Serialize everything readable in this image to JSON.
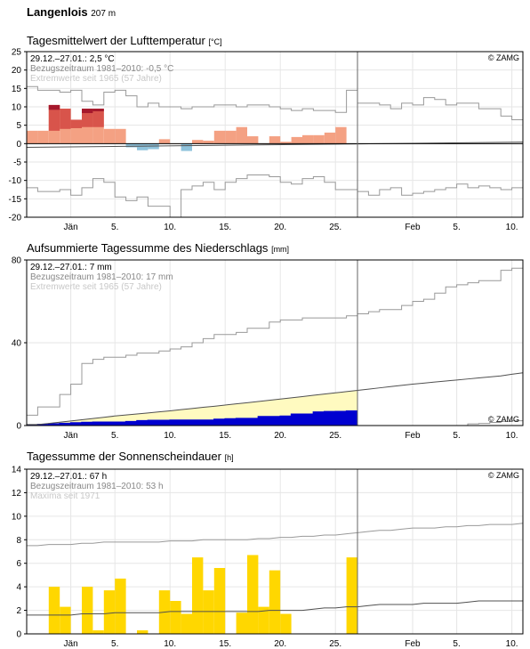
{
  "station": {
    "name": "Langenlois",
    "elevation": "207 m"
  },
  "chart_data": [
    {
      "type": "bar",
      "title": "Tagesmittelwert der Lufttemperatur",
      "unit": "[°C]",
      "info": {
        "line1": "29.12.–27.01.: 2,5 °C",
        "line2": "Bezugszeitraum 1981–2010: -0,5 °C",
        "line3": "Extremwerte seit 1965 (57 Jahre)",
        "copyright": "© ZAMG"
      },
      "ylim": [
        -20,
        25
      ],
      "yticks": [
        25,
        20,
        15,
        10,
        5,
        0,
        -5,
        -10,
        -15,
        -20
      ],
      "xticks": [
        {
          "label": "Jän",
          "day": 4
        },
        {
          "label": "5.",
          "day": 8
        },
        {
          "label": "10.",
          "day": 13
        },
        {
          "label": "15.",
          "day": 18
        },
        {
          "label": "20.",
          "day": 23
        },
        {
          "label": "25.",
          "day": 28
        },
        {
          "label": "Feb",
          "day": 35
        },
        {
          "label": "5.",
          "day": 39
        },
        {
          "label": "10.",
          "day": 44
        }
      ],
      "days": 45,
      "split_day": 30,
      "values": [
        3.5,
        3.5,
        10.5,
        9.5,
        6.5,
        9.5,
        9.5,
        4,
        4,
        -1,
        -1.8,
        -1.5,
        1.2,
        0,
        -2,
        1,
        0.8,
        3.5,
        3.5,
        4.5,
        2,
        0,
        2,
        0.5,
        1.8,
        2.3,
        2.3,
        3,
        4.5
      ],
      "clim_values": [
        3.5,
        3.5,
        3.5,
        4,
        4.2,
        4.5,
        4.5,
        4,
        4
      ],
      "colors": {
        "warm": "#f4a183",
        "warm_extra": "#d8544b",
        "warm_record": "#a5182c",
        "cold": "#8fc3dc",
        "normal": "#505050",
        "extreme": "#999999"
      },
      "normal_start": -1.0,
      "normal_end": 0.4,
      "max_extreme": [
        15.5,
        14.5,
        14.5,
        14,
        14.5,
        11.5,
        10.5,
        14,
        14.5,
        13,
        10,
        11,
        10,
        10,
        9.5,
        10,
        10,
        10.5,
        10.5,
        10,
        10.5,
        10.5,
        10,
        9.5,
        9,
        9.5,
        9,
        9,
        8.5,
        14.5,
        11,
        11,
        10.5,
        9.5,
        11,
        10.5,
        12.5,
        12,
        10.5,
        11,
        11,
        9.5,
        9.5,
        7.5,
        6.5
      ],
      "min_extreme": [
        -12,
        -13,
        -13,
        -12.5,
        -14,
        -12,
        -9.5,
        -10.5,
        -14.5,
        -15.5,
        -14.5,
        -17,
        -17,
        -20,
        -12.5,
        -11.5,
        -10.5,
        -12.5,
        -10.5,
        -9.5,
        -8.5,
        -8.5,
        -9,
        -10.5,
        -11,
        -9.5,
        -9,
        -10.5,
        -12.5,
        -12.5,
        -13,
        -14,
        -12.5,
        -12,
        -14,
        -13.5,
        -13,
        -12.5,
        -12,
        -11,
        -12,
        -11.5,
        -12,
        -12.5,
        -12
      ]
    },
    {
      "type": "area",
      "title": "Aufsummierte Tagessumme des Niederschlags",
      "unit": "[mm]",
      "info": {
        "line1": "29.12.–27.01.: 7 mm",
        "line2": "Bezugszeitraum 1981–2010: 17 mm",
        "line3": "Extremwerte seit 1965 (57 Jahre)",
        "copyright": "© ZAMG"
      },
      "ylim": [
        0,
        80
      ],
      "yticks": [
        80,
        40,
        0
      ],
      "xticks": [
        {
          "label": "Jän",
          "day": 4
        },
        {
          "label": "5.",
          "day": 8
        },
        {
          "label": "10.",
          "day": 13
        },
        {
          "label": "15.",
          "day": 18
        },
        {
          "label": "20.",
          "day": 23
        },
        {
          "label": "25.",
          "day": 28
        },
        {
          "label": "Feb",
          "day": 35
        },
        {
          "label": "5.",
          "day": 39
        },
        {
          "label": "10.",
          "day": 44
        }
      ],
      "days": 45,
      "split_day": 30,
      "series": [
        {
          "name": "actual",
          "color": "#0000d0",
          "values": [
            0.3,
            0.5,
            0.8,
            1,
            1.3,
            1.5,
            1.6,
            1.6,
            1.6,
            1.9,
            2.3,
            2.5,
            2.5,
            2.6,
            2.6,
            2.6,
            2.6,
            3,
            3.2,
            3.4,
            3.4,
            4.3,
            4.3,
            4.5,
            5.5,
            5.5,
            6.5,
            6.7,
            6.8,
            7
          ]
        },
        {
          "name": "normal",
          "color": "#505050",
          "values": [
            0.5,
            1,
            1.6,
            2.2,
            2.8,
            3.4,
            4,
            4.6,
            5.1,
            5.6,
            6.1,
            6.6,
            7.1,
            7.7,
            8.2,
            8.8,
            9.3,
            9.9,
            10.5,
            11,
            11.6,
            12.2,
            12.8,
            13.4,
            14,
            14.6,
            15.2,
            15.8,
            16.4,
            17,
            17.6,
            18.2,
            18.8,
            19.4,
            20,
            20.5,
            21,
            21.5,
            22,
            22.5,
            23,
            23.5,
            24,
            24.8,
            25.5
          ]
        },
        {
          "name": "max_extreme",
          "color": "#999999",
          "values": [
            5,
            9,
            9,
            15,
            20,
            30,
            32,
            33,
            33,
            34,
            35,
            35,
            36,
            37,
            38,
            40,
            42,
            44,
            44,
            45,
            47,
            47,
            50,
            51,
            51,
            52,
            52,
            52,
            52,
            53,
            54,
            55,
            56,
            56,
            58,
            60,
            61,
            64,
            67,
            68,
            69,
            70,
            70,
            75,
            76
          ]
        },
        {
          "name": "min_extreme",
          "color": "#999999",
          "values": [
            0,
            0,
            0,
            0,
            0,
            0,
            0,
            0,
            0,
            0,
            0,
            0,
            0,
            0,
            0,
            0,
            0,
            0,
            0,
            0,
            0,
            0,
            0,
            0,
            0,
            0,
            0,
            0,
            0,
            0,
            0,
            0,
            0,
            0,
            0,
            0,
            0,
            0,
            0,
            0,
            0.8,
            1,
            1.5,
            2,
            2.3
          ]
        }
      ],
      "colors": {
        "deficit_fill": "#fffac0"
      }
    },
    {
      "type": "bar",
      "title": "Tagessumme der Sonnenscheindauer",
      "unit": "[h]",
      "info": {
        "line1": "29.12.–27.01.: 67 h",
        "line2": "Bezugszeitraum 1981–2010: 53 h",
        "line3": "Maxima seit 1971",
        "copyright": "© ZAMG"
      },
      "ylim": [
        0,
        14
      ],
      "yticks": [
        14,
        12,
        10,
        8,
        6,
        4,
        2,
        0
      ],
      "xticks": [
        {
          "label": "Jän",
          "day": 4
        },
        {
          "label": "5.",
          "day": 8
        },
        {
          "label": "10.",
          "day": 13
        },
        {
          "label": "15.",
          "day": 18
        },
        {
          "label": "20.",
          "day": 23
        },
        {
          "label": "25.",
          "day": 28
        },
        {
          "label": "Feb",
          "day": 35
        },
        {
          "label": "5.",
          "day": 39
        },
        {
          "label": "10.",
          "day": 44
        }
      ],
      "days": 45,
      "split_day": 30,
      "bar_color": "#ffd700",
      "values": [
        0,
        0,
        4.0,
        2.3,
        0,
        4.0,
        0.3,
        3.7,
        4.7,
        0,
        0.3,
        0,
        3.7,
        2.8,
        1.7,
        6.5,
        3.7,
        5.6,
        0,
        1.8,
        6.7,
        2.3,
        5.4,
        1.7,
        0,
        0,
        0,
        0,
        0,
        6.5
      ],
      "series": [
        {
          "name": "max",
          "color": "#999999",
          "values": [
            7.5,
            7.6,
            7.6,
            7.6,
            7.7,
            7.7,
            7.8,
            7.8,
            7.8,
            7.8,
            7.8,
            7.8,
            7.9,
            7.9,
            7.9,
            8.0,
            8.0,
            8.0,
            8.0,
            8.0,
            8.1,
            8.1,
            8.2,
            8.2,
            8.3,
            8.3,
            8.4,
            8.4,
            8.5,
            8.6,
            8.7,
            8.8,
            8.8,
            8.9,
            9.0,
            9.0,
            9.0,
            9.1,
            9.1,
            9.2,
            9.2,
            9.3,
            9.3,
            9.3,
            9.4
          ]
        },
        {
          "name": "normal",
          "color": "#505050",
          "values": [
            1.6,
            1.6,
            1.6,
            1.6,
            1.7,
            1.7,
            1.7,
            1.8,
            1.8,
            1.8,
            1.8,
            1.8,
            1.9,
            1.9,
            1.9,
            1.9,
            1.9,
            1.9,
            1.9,
            1.9,
            1.9,
            2.0,
            2.0,
            2.0,
            2.0,
            2.1,
            2.2,
            2.2,
            2.3,
            2.3,
            2.4,
            2.5,
            2.5,
            2.5,
            2.5,
            2.6,
            2.6,
            2.6,
            2.6,
            2.7,
            2.8,
            2.8,
            2.8,
            2.8,
            2.8
          ]
        }
      ]
    }
  ]
}
